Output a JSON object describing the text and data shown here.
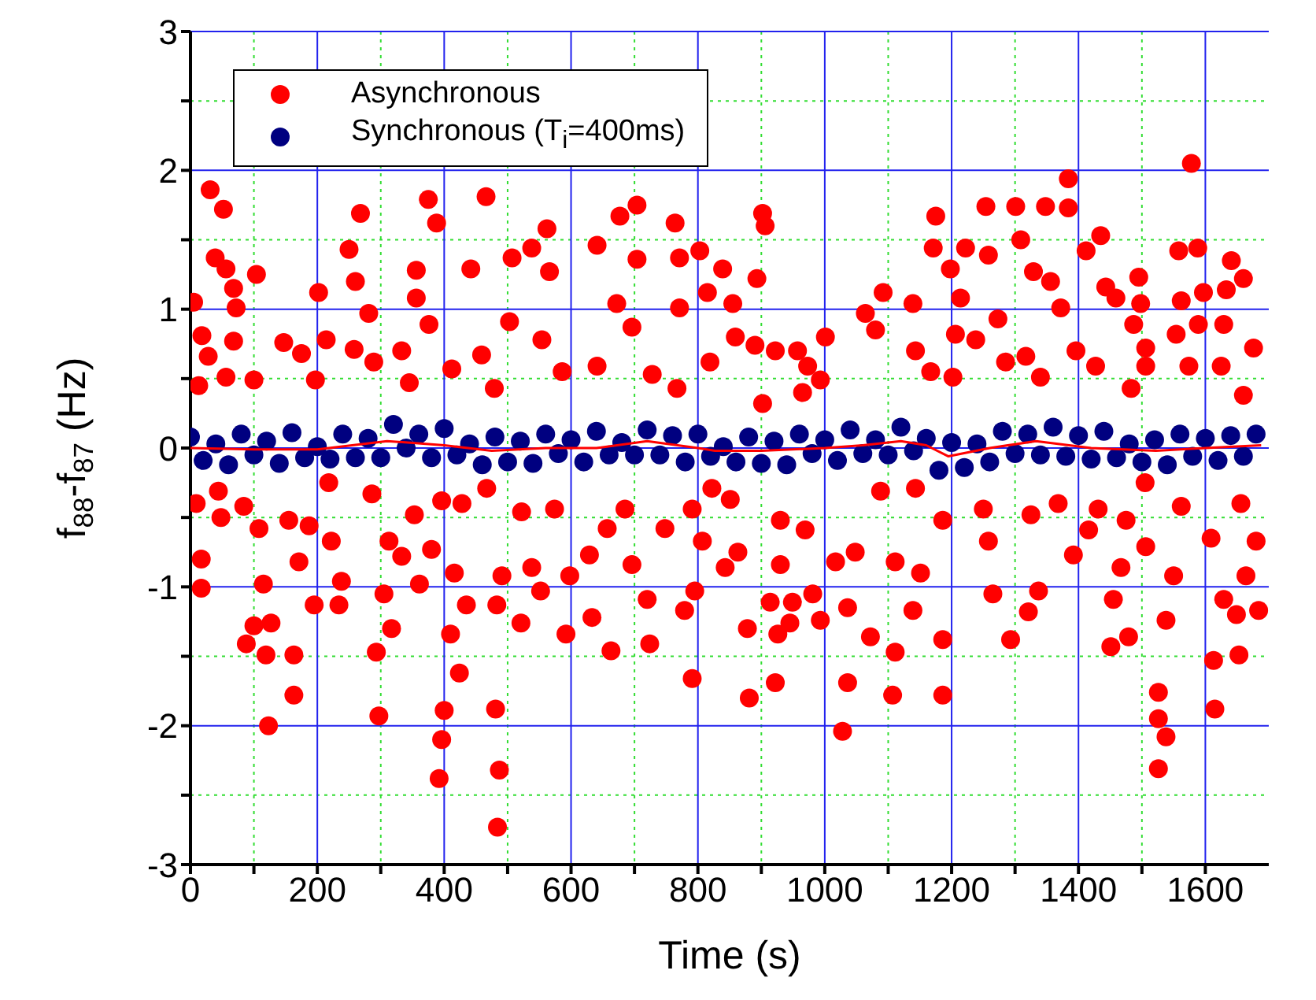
{
  "chart_data": {
    "type": "scatter",
    "xlabel": "Time (s)",
    "ylabel": "f$_{88}$-f$_{87}$ (Hz)",
    "xlim": [
      0,
      1700
    ],
    "ylim": [
      -3,
      3
    ],
    "xticks": [
      0,
      {
        "value": 100,
        "label": null
      },
      200,
      {
        "value": 300,
        "label": null
      },
      400,
      {
        "value": 500,
        "label": null
      },
      600,
      {
        "value": 700,
        "label": null
      },
      800,
      {
        "value": 900,
        "label": null
      },
      1000,
      {
        "value": 1100,
        "label": null
      },
      1200,
      {
        "value": 1300,
        "label": null
      },
      1400,
      {
        "value": 1500,
        "label": null
      },
      1600
    ],
    "yticks": [
      -3,
      {
        "value": -2.5,
        "label": null
      },
      -2,
      {
        "value": -1.5,
        "label": null
      },
      -1,
      {
        "value": -0.5,
        "label": null
      },
      0,
      {
        "value": 0.5,
        "label": null
      },
      1,
      {
        "value": 1.5,
        "label": null
      },
      2,
      {
        "value": 2.5,
        "label": null
      },
      3
    ],
    "grid": true,
    "legend": "top left",
    "series": [
      {
        "name": "Asynchronous",
        "marker": "circle",
        "color": "#ff0000",
        "x": [
          31,
          52,
          5,
          39,
          56,
          68,
          104,
          72,
          18,
          28,
          56,
          13,
          68,
          100,
          147,
          175,
          202,
          197,
          214,
          250,
          268,
          260,
          281,
          289,
          258,
          375,
          388,
          356,
          356,
          376,
          333,
          345,
          412,
          442,
          466,
          459,
          479,
          507,
          538,
          562,
          566,
          503,
          554,
          586,
          641,
          677,
          704,
          704,
          672,
          696,
          641,
          728,
          764,
          771,
          803,
          815,
          771,
          819,
          767,
          9,
          17,
          17,
          44,
          48,
          84,
          88,
          100,
          115,
          123,
          119,
          127,
          108,
          155,
          163,
          163,
          171,
          195,
          187,
          222,
          238,
          234,
          218,
          286,
          293,
          297,
          305,
          317,
          313,
          333,
          353,
          361,
          380,
          396,
          400,
          396,
          392,
          410,
          424,
          416,
          435,
          428,
          467,
          483,
          481,
          487,
          484,
          491,
          522,
          521,
          538,
          552,
          574,
          592,
          598,
          629,
          633,
          663,
          657,
          685,
          696,
          720,
          724,
          748,
          779,
          791,
          795,
          807,
          822,
          791,
          902,
          906,
          893,
          839,
          855,
          859,
          890,
          922,
          957,
          973,
          1001,
          993,
          965,
          902,
          1064,
          1092,
          1080,
          1139,
          1143,
          1175,
          1171,
          1198,
          1214,
          1222,
          1258,
          1254,
          1301,
          1309,
          1348,
          1384,
          1384,
          1412,
          1435,
          1329,
          1356,
          1372,
          1273,
          1238,
          1206,
          1167,
          1202,
          1285,
          1317,
          1340,
          1396,
          1427,
          1443,
          1459,
          1495,
          1498,
          1487,
          1506,
          1506,
          1483,
          1578,
          1558,
          1588,
          1597,
          1562,
          1589,
          1554,
          1574,
          1641,
          1660,
          1633,
          1629,
          1676,
          1660,
          1625,
          851,
          843,
          863,
          878,
          881,
          922,
          914,
          926,
          945,
          949,
          930,
          930,
          969,
          993,
          981,
          1028,
          1036,
          1036,
          1017,
          1048,
          1072,
          1088,
          1111,
          1107,
          1111,
          1139,
          1151,
          1143,
          1186,
          1186,
          1186,
          1250,
          1258,
          1265,
          1293,
          1321,
          1337,
          1325,
          1368,
          1392,
          1416,
          1431,
          1455,
          1451,
          1467,
          1479,
          1475,
          1505,
          1526,
          1526,
          1538,
          1526,
          1506,
          1538,
          1550,
          1562,
          1609,
          1613,
          1615,
          1629,
          1653,
          1649,
          1664,
          1656,
          1680,
          1684
        ],
        "values": [
          1.86,
          1.72,
          1.05,
          1.37,
          1.29,
          1.15,
          1.25,
          1.01,
          0.81,
          0.66,
          0.51,
          0.45,
          0.77,
          0.49,
          0.76,
          0.68,
          1.12,
          0.49,
          0.78,
          1.43,
          1.69,
          1.2,
          0.97,
          0.62,
          0.71,
          1.79,
          1.62,
          1.28,
          1.08,
          0.89,
          0.7,
          0.47,
          0.57,
          1.29,
          1.81,
          0.67,
          0.43,
          1.37,
          1.44,
          1.58,
          1.27,
          0.91,
          0.78,
          0.55,
          1.46,
          1.67,
          1.75,
          1.36,
          1.04,
          0.87,
          0.59,
          0.53,
          1.62,
          1.37,
          1.42,
          1.12,
          1.01,
          0.62,
          0.43,
          -0.4,
          -0.8,
          -1.01,
          -0.31,
          -0.5,
          -0.42,
          -1.41,
          -1.28,
          -0.98,
          -2.0,
          -1.49,
          -1.26,
          -0.58,
          -0.52,
          -1.49,
          -1.78,
          -0.82,
          -1.13,
          -0.56,
          -0.67,
          -0.96,
          -1.13,
          -0.25,
          -0.33,
          -1.47,
          -1.93,
          -1.05,
          -1.3,
          -0.67,
          -0.78,
          -0.48,
          -0.98,
          -0.73,
          -0.38,
          -1.89,
          -2.1,
          -2.38,
          -1.34,
          -1.62,
          -0.9,
          -1.13,
          -0.4,
          -0.29,
          -1.13,
          -1.88,
          -2.32,
          -2.73,
          -0.92,
          -0.46,
          -1.26,
          -0.86,
          -1.03,
          -0.44,
          -1.34,
          -0.92,
          -0.77,
          -1.22,
          -1.46,
          -0.58,
          -0.44,
          -0.84,
          -1.09,
          -1.41,
          -0.58,
          -1.17,
          -1.66,
          -1.03,
          -0.67,
          -0.29,
          -0.44,
          1.69,
          1.6,
          1.22,
          1.29,
          1.04,
          0.8,
          0.74,
          0.7,
          0.7,
          0.59,
          0.8,
          0.49,
          0.4,
          0.32,
          0.97,
          1.12,
          0.85,
          1.04,
          0.7,
          1.67,
          1.44,
          1.29,
          1.08,
          1.44,
          1.39,
          1.74,
          1.74,
          1.5,
          1.74,
          1.94,
          1.73,
          1.42,
          1.53,
          1.27,
          1.2,
          1.01,
          0.93,
          0.78,
          0.82,
          0.55,
          0.51,
          0.62,
          0.66,
          0.51,
          0.7,
          0.59,
          1.16,
          1.08,
          1.23,
          1.04,
          0.89,
          0.72,
          0.59,
          0.43,
          2.05,
          1.42,
          1.44,
          1.12,
          1.06,
          0.89,
          0.82,
          0.59,
          1.35,
          1.22,
          1.14,
          0.89,
          0.72,
          0.38,
          0.59,
          -0.37,
          -0.86,
          -0.75,
          -1.3,
          -1.8,
          -1.69,
          -1.11,
          -1.34,
          -1.26,
          -1.11,
          -0.84,
          -0.52,
          -0.59,
          -1.24,
          -1.05,
          -2.04,
          -1.69,
          -1.15,
          -0.82,
          -0.75,
          -1.36,
          -0.31,
          -1.47,
          -1.78,
          -0.82,
          -1.17,
          -0.9,
          -0.29,
          -1.78,
          -1.38,
          -0.52,
          -0.44,
          -0.67,
          -1.05,
          -1.38,
          -1.18,
          -1.03,
          -0.48,
          -0.4,
          -0.77,
          -0.59,
          -0.44,
          -1.09,
          -1.43,
          -0.86,
          -1.36,
          -0.52,
          -0.25,
          -1.76,
          -1.95,
          -2.08,
          -2.31,
          -0.71,
          -1.24,
          -0.92,
          -0.42,
          -0.65,
          -1.53,
          -1.88,
          -1.09,
          -1.49,
          -1.2,
          -0.92,
          -0.4,
          -0.67,
          -1.17
        ]
      },
      {
        "name": "Synchronous (T$_{i}$=400ms)",
        "marker": "circle",
        "color": "#000080",
        "x": [
          0,
          20,
          40,
          60,
          80,
          100,
          120,
          140,
          160,
          180,
          200,
          220,
          240,
          260,
          280,
          300,
          320,
          340,
          360,
          380,
          400,
          420,
          440,
          460,
          480,
          500,
          520,
          540,
          560,
          580,
          600,
          620,
          640,
          660,
          680,
          700,
          720,
          740,
          760,
          780,
          800,
          820,
          840,
          860,
          880,
          900,
          920,
          940,
          960,
          980,
          1000,
          1020,
          1040,
          1060,
          1080,
          1100,
          1120,
          1140,
          1160,
          1180,
          1200,
          1220,
          1240,
          1260,
          1280,
          1300,
          1320,
          1340,
          1360,
          1380,
          1400,
          1420,
          1440,
          1460,
          1480,
          1500,
          1520,
          1540,
          1560,
          1580,
          1600,
          1620,
          1640,
          1660,
          1680
        ],
        "values": [
          0.08,
          -0.09,
          0.03,
          -0.12,
          0.1,
          -0.05,
          0.05,
          -0.11,
          0.11,
          -0.07,
          0.01,
          -0.08,
          0.1,
          -0.07,
          0.07,
          -0.07,
          0.17,
          0.0,
          0.1,
          -0.07,
          0.14,
          -0.05,
          0.03,
          -0.12,
          0.08,
          -0.1,
          0.05,
          -0.11,
          0.1,
          -0.04,
          0.06,
          -0.1,
          0.12,
          -0.05,
          0.04,
          -0.05,
          0.13,
          -0.05,
          0.09,
          -0.1,
          0.1,
          -0.06,
          0.01,
          -0.1,
          0.08,
          -0.11,
          0.05,
          -0.12,
          0.1,
          -0.04,
          0.06,
          -0.09,
          0.13,
          -0.04,
          0.06,
          -0.05,
          0.15,
          -0.02,
          0.07,
          -0.16,
          0.04,
          -0.14,
          0.03,
          -0.1,
          0.12,
          -0.04,
          0.1,
          -0.05,
          0.15,
          -0.06,
          0.09,
          -0.08,
          0.12,
          -0.07,
          0.03,
          -0.1,
          0.06,
          -0.12,
          0.1,
          -0.06,
          0.07,
          -0.09,
          0.09,
          -0.06,
          0.1
        ]
      },
      {
        "type": "line",
        "marker": "none",
        "color": "#ff0000",
        "x": [
          0,
          100,
          200,
          310,
          400,
          475,
          560,
          640,
          720,
          800,
          827,
          900,
          1000,
          1060,
          1120,
          1160,
          1195,
          1260,
          1333,
          1420,
          1522,
          1600,
          1688
        ],
        "values": [
          0,
          -0.01,
          -0.01,
          0.05,
          0.02,
          -0.02,
          0.0,
          0.0,
          0.05,
          0.0,
          -0.02,
          -0.02,
          0.0,
          0.02,
          0.05,
          0.02,
          -0.06,
          0.0,
          0.05,
          0.0,
          -0.02,
          0.0,
          0.02
        ]
      }
    ]
  }
}
